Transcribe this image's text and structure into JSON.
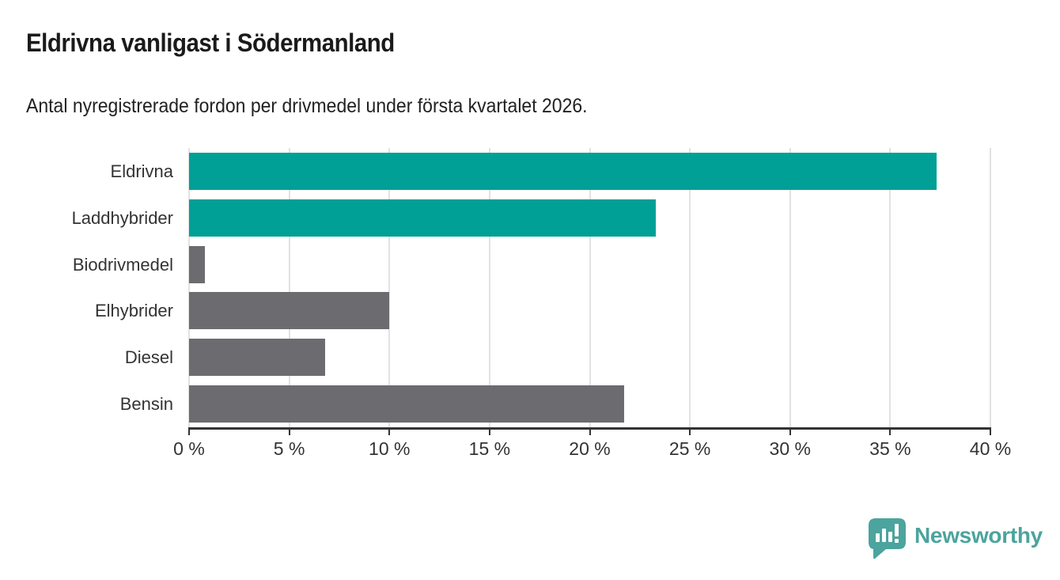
{
  "header": {
    "title": "Eldrivna vanligast i Södermanland",
    "subtitle": "Antal nyregistrerade fordon per drivmedel under första kvartalet 2026."
  },
  "chart_data": {
    "type": "bar",
    "orientation": "horizontal",
    "title": "Eldrivna vanligast i Södermanland",
    "subtitle": "Antal nyregistrerade fordon per drivmedel under första kvartalet 2026.",
    "categories": [
      "Eldrivna",
      "Laddhybrider",
      "Biodrivmedel",
      "Elhybrider",
      "Diesel",
      "Bensin"
    ],
    "values": [
      37.3,
      23.3,
      0.8,
      10.0,
      6.8,
      21.7
    ],
    "unit": "%",
    "bar_colors": [
      "#00a096",
      "#00a096",
      "#6b6b70",
      "#6b6b70",
      "#6b6b70",
      "#6b6b70"
    ],
    "xlim": [
      0,
      40
    ],
    "x_ticks": [
      0,
      5,
      10,
      15,
      20,
      25,
      30,
      35,
      40
    ],
    "x_tick_labels": [
      "0 %",
      "5 %",
      "10 %",
      "15 %",
      "20 %",
      "25 %",
      "30 %",
      "35 %",
      "40 %"
    ],
    "grid": true,
    "legend": "none"
  },
  "branding": {
    "logo_text": "Newsworthy",
    "logo_color": "#4ba49d"
  },
  "colors": {
    "accent_teal": "#00a096",
    "bar_gray": "#6b6b70",
    "gridline": "#e2e2e2",
    "axis": "#333333",
    "title_text": "#1a1a1a"
  }
}
